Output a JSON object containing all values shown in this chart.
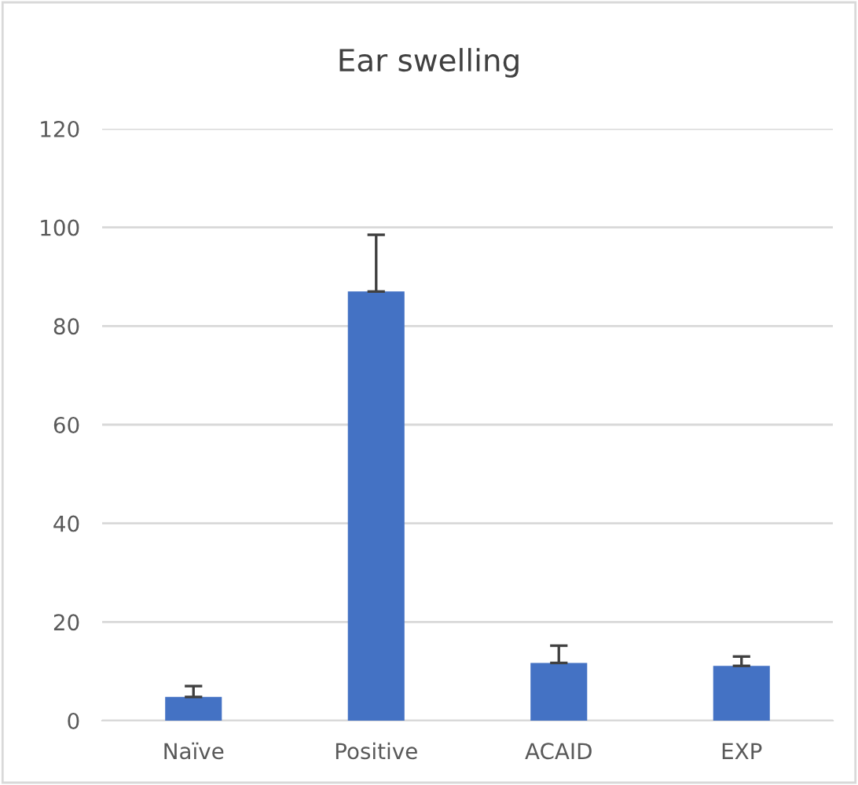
{
  "chart_data": {
    "type": "bar",
    "title": "Ear swelling",
    "categories": [
      "Naïve",
      "Positive",
      "ACAID",
      "EXP"
    ],
    "values": [
      4.8,
      87,
      11.7,
      11.1
    ],
    "errors": [
      [
        4.8,
        7
      ],
      [
        87,
        98.5
      ],
      [
        11.7,
        15.2
      ],
      [
        11.1,
        13
      ]
    ],
    "color": "#4472c4",
    "ylim": [
      0,
      120
    ],
    "yticks": [
      0,
      20,
      40,
      60,
      80,
      100,
      120
    ],
    "grid": "y"
  }
}
